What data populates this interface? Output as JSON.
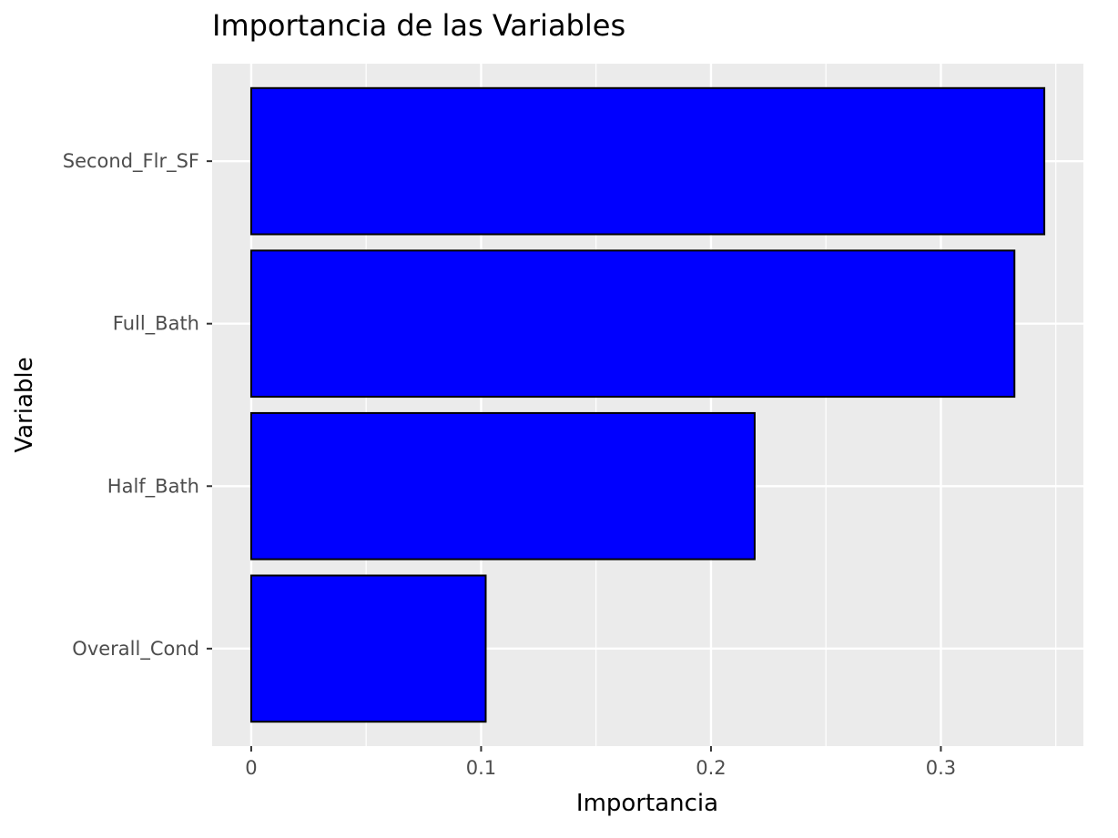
{
  "chart_data": {
    "type": "bar",
    "orientation": "horizontal",
    "title": "Importancia de las Variables",
    "xlabel": "Importancia",
    "ylabel": "Variable",
    "categories": [
      "Second_Flr_SF",
      "Full_Bath",
      "Half_Bath",
      "Overall_Cond"
    ],
    "values": [
      0.345,
      0.332,
      0.219,
      0.102
    ],
    "xlim": [
      -0.017,
      0.362
    ],
    "x_ticks": [
      0,
      0.1,
      0.2,
      0.3
    ],
    "x_tick_labels": [
      "0",
      "0.1",
      "0.2",
      "0.3"
    ],
    "grid": true,
    "legend": "none",
    "bar_fill": "#0000ff",
    "bar_stroke": "#000000",
    "panel_background": "#ebebeb",
    "grid_color": "#ffffff"
  }
}
